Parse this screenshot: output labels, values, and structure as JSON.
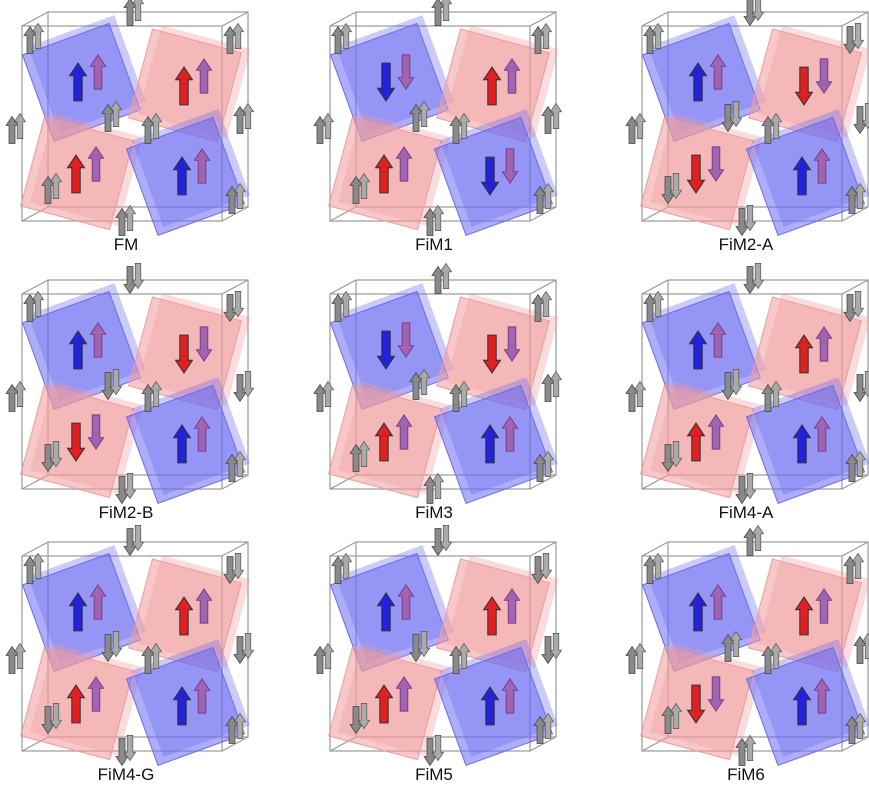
{
  "panels": [
    {
      "label": "FM"
    },
    {
      "label": "FiM1"
    },
    {
      "label": "FiM2-A"
    },
    {
      "label": "FiM2-B"
    },
    {
      "label": "FiM3"
    },
    {
      "label": "FiM4-A"
    },
    {
      "label": "FiM4-G"
    },
    {
      "label": "FiM5"
    },
    {
      "label": "FiM6"
    }
  ]
}
